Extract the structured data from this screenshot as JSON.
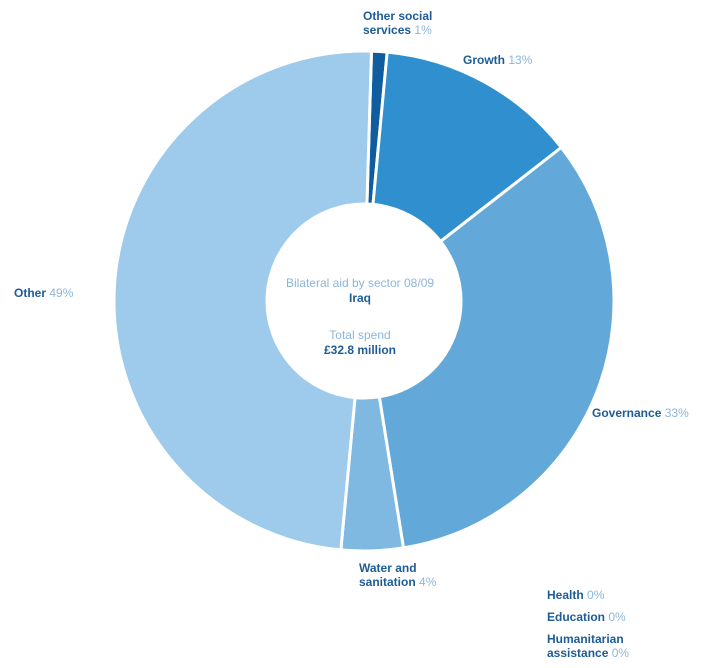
{
  "chart_data": {
    "type": "pie",
    "title": "Bilateral aid by sector 08/09",
    "subtitle": "Iraq",
    "total_label": "Total spend",
    "total_value": "£32.8 million",
    "slices": [
      {
        "name": "Other social services",
        "value": 1,
        "label": "1%",
        "color": "#0f5d9e"
      },
      {
        "name": "Growth",
        "value": 13,
        "label": "13%",
        "color": "#2f8fcf"
      },
      {
        "name": "Governance",
        "value": 33,
        "label": "33%",
        "color": "#62a9d9"
      },
      {
        "name": "Water and sanitation",
        "value": 4,
        "label": "4%",
        "color": "#7fb9e2"
      },
      {
        "name": "Other",
        "value": 49,
        "label": "49%",
        "color": "#9ecbeb"
      },
      {
        "name": "Health",
        "value": 0,
        "label": "0%",
        "color": "#1d5c97"
      },
      {
        "name": "Education",
        "value": 0,
        "label": "0%",
        "color": "#1d5c97"
      },
      {
        "name": "Humanitarian assistance",
        "value": 0,
        "label": "0%",
        "color": "#1d5c97"
      }
    ]
  },
  "labels": {
    "other_social": {
      "line1": "Other social",
      "line2": "services",
      "pct": "1%"
    },
    "growth": {
      "name": "Growth",
      "pct": "13%"
    },
    "governance": {
      "name": "Governance",
      "pct": "33%"
    },
    "water": {
      "line1": "Water and",
      "line2": "sanitation",
      "pct": "4%"
    },
    "other": {
      "name": "Other",
      "pct": "49%"
    },
    "health": {
      "name": "Health",
      "pct": "0%"
    },
    "education": {
      "name": "Education",
      "pct": "0%"
    },
    "humanitarian": {
      "line1": "Humanitarian",
      "line2": "assistance",
      "pct": "0%"
    }
  }
}
